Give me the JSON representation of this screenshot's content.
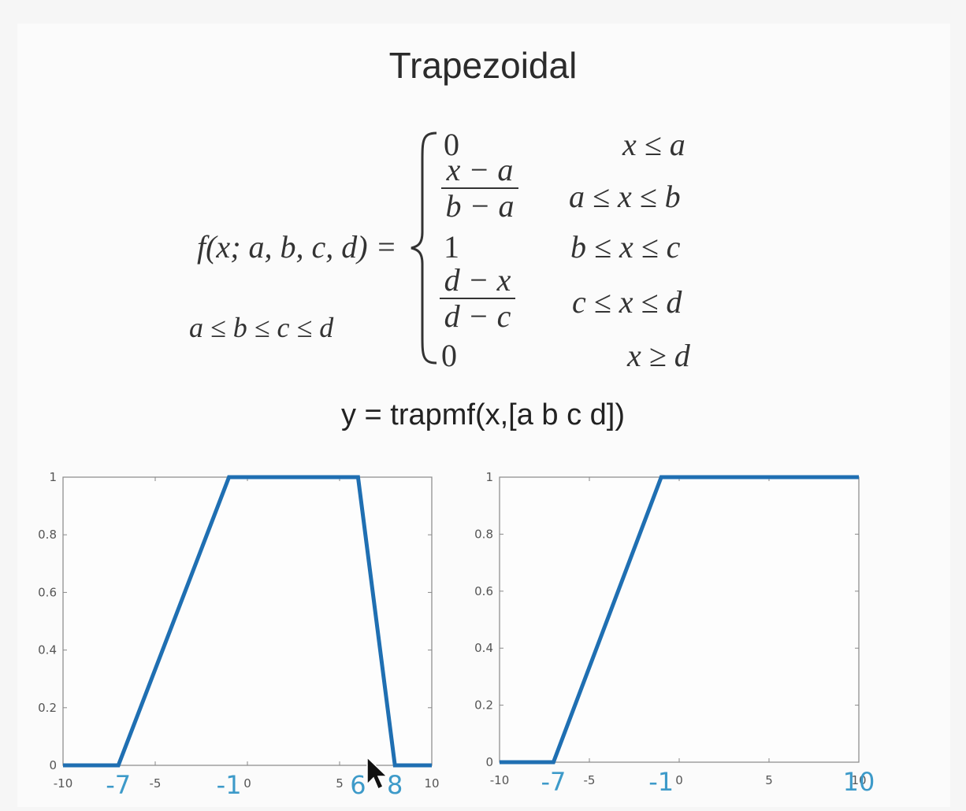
{
  "title": "Trapezoidal",
  "formula": {
    "lhs": "f(x; a, b, c, d) =",
    "constraint": "a ≤ b ≤ c ≤ d",
    "cases": [
      {
        "expr": "0",
        "cond": "x ≤ a"
      },
      {
        "num": "x − a",
        "den": "b − a",
        "cond": "a ≤ x ≤ b"
      },
      {
        "expr": "1",
        "cond": "b ≤ x ≤ c"
      },
      {
        "num": "d − x",
        "den": "d − c",
        "cond": "c ≤ x ≤ d"
      },
      {
        "expr": "0",
        "cond": "x ≥ d"
      }
    ]
  },
  "function_call": "y = trapmf(x,[a b c d])",
  "colors": {
    "line": "#1f6fb2",
    "annotation": "#3d9ac9",
    "axis": "#888888"
  },
  "chart_data": [
    {
      "type": "line",
      "xlim": [
        -10,
        10
      ],
      "ylim": [
        0,
        1
      ],
      "x_ticks": [
        -10,
        -5,
        0,
        5,
        10
      ],
      "y_ticks": [
        0,
        0.2,
        0.4,
        0.6,
        0.8,
        1
      ],
      "series": [
        {
          "x": [
            -10,
            -7,
            -1,
            6,
            8,
            10
          ],
          "y": [
            0,
            0,
            1,
            1,
            0,
            0
          ]
        }
      ],
      "annotations": [
        {
          "text": "-7",
          "x": -7
        },
        {
          "text": "-1",
          "x": -1
        },
        {
          "text": "6",
          "x": 6
        },
        {
          "text": "8",
          "x": 8
        }
      ]
    },
    {
      "type": "line",
      "xlim": [
        -10,
        10
      ],
      "ylim": [
        0,
        1
      ],
      "x_ticks": [
        -10,
        -5,
        0,
        5,
        10
      ],
      "y_ticks": [
        0,
        0.2,
        0.4,
        0.6,
        0.8,
        1
      ],
      "series": [
        {
          "x": [
            -10,
            -7,
            -1,
            10
          ],
          "y": [
            0,
            0,
            1,
            1
          ]
        }
      ],
      "annotations": [
        {
          "text": "-7",
          "x": -7
        },
        {
          "text": "-1",
          "x": -1
        },
        {
          "text": "10",
          "x": 10
        }
      ]
    }
  ]
}
